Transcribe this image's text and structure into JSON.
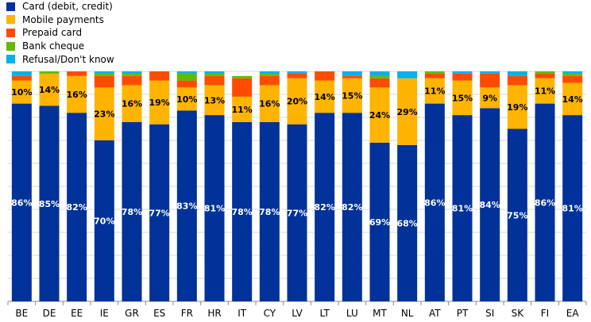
{
  "chart_data": {
    "type": "bar",
    "stacked": true,
    "title": "",
    "xlabel": "",
    "ylabel": "",
    "ylim": [
      0,
      100
    ],
    "grid": true,
    "legend_position": "top-left",
    "categories": [
      "BE",
      "DE",
      "EE",
      "IE",
      "GR",
      "ES",
      "FR",
      "HR",
      "IT",
      "CY",
      "LV",
      "LT",
      "LU",
      "MT",
      "NL",
      "AT",
      "PT",
      "SI",
      "SK",
      "FI",
      "EA"
    ],
    "series": [
      {
        "name": "Card (debit, credit)",
        "color": "#003299",
        "values": [
          86,
          85,
          82,
          70,
          78,
          77,
          83,
          81,
          78,
          78,
          77,
          82,
          82,
          69,
          68,
          86,
          81,
          84,
          75,
          86,
          81
        ],
        "labels": [
          "86%",
          "85%",
          "82%",
          "70%",
          "78%",
          "77%",
          "83%",
          "81%",
          "78%",
          "78%",
          "77%",
          "82%",
          "82%",
          "69%",
          "68%",
          "86%",
          "81%",
          "84%",
          "75%",
          "86%",
          "81%"
        ]
      },
      {
        "name": "Mobile payments",
        "color": "#FFB400",
        "values": [
          10,
          14,
          16,
          23,
          16,
          19,
          10,
          13,
          11,
          16,
          20,
          14,
          15,
          24,
          29,
          11,
          15,
          9,
          19,
          11,
          14
        ],
        "labels": [
          "10%",
          "14%",
          "16%",
          "23%",
          "16%",
          "19%",
          "10%",
          "13%",
          "11%",
          "16%",
          "20%",
          "14%",
          "15%",
          "24%",
          "29%",
          "11%",
          "15%",
          "9%",
          "19%",
          "11%",
          "14%"
        ]
      },
      {
        "name": "Prepaid card",
        "color": "#FF4B00",
        "values": [
          2,
          0,
          2,
          5,
          4,
          4,
          3,
          4,
          8,
          4,
          2,
          4,
          1,
          4,
          0,
          2,
          3,
          6,
          4,
          2,
          3
        ],
        "labels": []
      },
      {
        "name": "Bank cheque",
        "color": "#65B800",
        "values": [
          0,
          1,
          0,
          1,
          1,
          0,
          3,
          1,
          1,
          1,
          0,
          0,
          0,
          1,
          0,
          1,
          0,
          0,
          0,
          1,
          1
        ],
        "labels": []
      },
      {
        "name": "Refusal/Don't know",
        "color": "#00B1EA",
        "values": [
          2,
          0,
          0,
          1,
          1,
          0,
          1,
          1,
          0,
          1,
          1,
          0,
          2,
          2,
          3,
          0,
          1,
          1,
          2,
          0,
          1
        ],
        "labels": []
      }
    ]
  }
}
